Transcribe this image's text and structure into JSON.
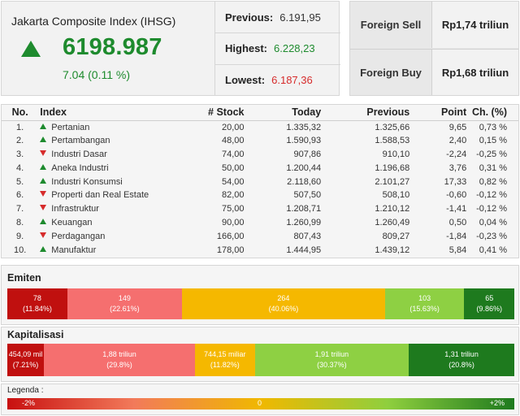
{
  "summary": {
    "index_name": "Jakarta Composite Index (IHSG)",
    "value": "6198.987",
    "change": "7.04 (0.11 %)",
    "previous_label": "Previous:",
    "previous_value": "6.191,95",
    "highest_label": "Highest:",
    "highest_value": "6.228,23",
    "lowest_label": "Lowest:",
    "lowest_value": "6.187,36"
  },
  "foreign": {
    "sell_label": "Foreign Sell",
    "sell_value": "Rp1,74 triliun",
    "buy_label": "Foreign Buy",
    "buy_value": "Rp1,68 triliun"
  },
  "table": {
    "headers": {
      "no": "No.",
      "index": "Index",
      "stock": "# Stock",
      "today": "Today",
      "previous": "Previous",
      "point": "Point",
      "change": "Ch. (%)"
    },
    "rows": [
      {
        "no": "1.",
        "dir": "up",
        "index": "Pertanian",
        "stock": "20,00",
        "today": "1.335,32",
        "previous": "1.325,66",
        "point": "9,65",
        "change": "0,73 %"
      },
      {
        "no": "2.",
        "dir": "up",
        "index": "Pertambangan",
        "stock": "48,00",
        "today": "1.590,93",
        "previous": "1.588,53",
        "point": "2,40",
        "change": "0,15 %"
      },
      {
        "no": "3.",
        "dir": "down",
        "index": "Industri Dasar",
        "stock": "74,00",
        "today": "907,86",
        "previous": "910,10",
        "point": "-2,24",
        "change": "-0,25 %"
      },
      {
        "no": "4.",
        "dir": "up",
        "index": "Aneka Industri",
        "stock": "50,00",
        "today": "1.200,44",
        "previous": "1.196,68",
        "point": "3,76",
        "change": "0,31 %"
      },
      {
        "no": "5.",
        "dir": "up",
        "index": "Industri Konsumsi",
        "stock": "54,00",
        "today": "2.118,60",
        "previous": "2.101,27",
        "point": "17,33",
        "change": "0,82 %"
      },
      {
        "no": "6.",
        "dir": "down",
        "index": "Properti dan Real Estate",
        "stock": "82,00",
        "today": "507,50",
        "previous": "508,10",
        "point": "-0,60",
        "change": "-0,12 %"
      },
      {
        "no": "7.",
        "dir": "down",
        "index": "Infrastruktur",
        "stock": "75,00",
        "today": "1.208,71",
        "previous": "1.210,12",
        "point": "-1,41",
        "change": "-0,12 %"
      },
      {
        "no": "8.",
        "dir": "up",
        "index": "Keuangan",
        "stock": "90,00",
        "today": "1.260,99",
        "previous": "1.260,49",
        "point": "0,50",
        "change": "0,04 %"
      },
      {
        "no": "9.",
        "dir": "down",
        "index": "Perdagangan",
        "stock": "166,00",
        "today": "807,43",
        "previous": "809,27",
        "point": "-1,84",
        "change": "-0,23 %"
      },
      {
        "no": "10.",
        "dir": "up",
        "index": "Manufaktur",
        "stock": "178,00",
        "today": "1.444,95",
        "previous": "1.439,12",
        "point": "5,84",
        "change": "0,41 %"
      }
    ]
  },
  "emiten": {
    "title": "Emiten",
    "segments": [
      {
        "value": "78",
        "pct": "(11.84%)",
        "share": 11.84,
        "color": "#c0100f"
      },
      {
        "value": "149",
        "pct": "(22.61%)",
        "share": 22.61,
        "color": "#f56f6f"
      },
      {
        "value": "264",
        "pct": "(40.06%)",
        "share": 40.06,
        "color": "#f5b800"
      },
      {
        "value": "103",
        "pct": "(15.63%)",
        "share": 15.63,
        "color": "#8ed043"
      },
      {
        "value": "65",
        "pct": "(9.86%)",
        "share": 9.86,
        "color": "#1e7a1e"
      }
    ]
  },
  "kapitalisasi": {
    "title": "Kapitalisasi",
    "segments": [
      {
        "value": "454,09 mil",
        "pct": "(7.21%)",
        "share": 7.21,
        "color": "#c0100f"
      },
      {
        "value": "1,88 triliun",
        "pct": "(29.8%)",
        "share": 29.8,
        "color": "#f56f6f"
      },
      {
        "value": "744,15 miliar",
        "pct": "(11.82%)",
        "share": 11.82,
        "color": "#f5b800"
      },
      {
        "value": "1,91 triliun",
        "pct": "(30.37%)",
        "share": 30.37,
        "color": "#8ed043"
      },
      {
        "value": "1,31 triliun",
        "pct": "(20.8%)",
        "share": 20.8,
        "color": "#1e7a1e"
      }
    ]
  },
  "legend": {
    "title": "Legenda :",
    "min": "-2%",
    "mid": "0",
    "max": "+2%"
  }
}
